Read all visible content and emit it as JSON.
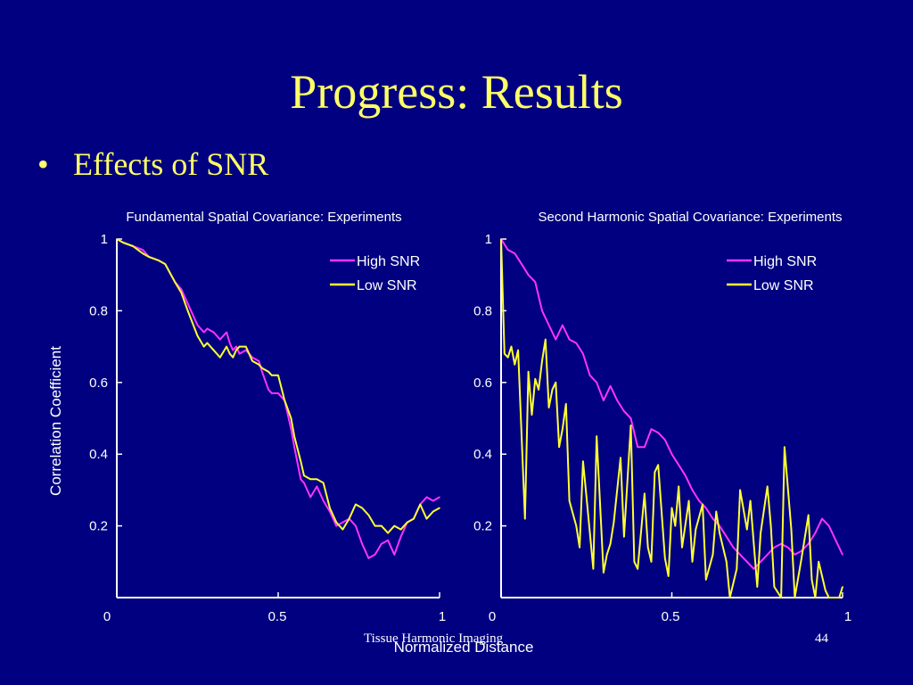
{
  "slide": {
    "title": "Progress: Results",
    "bullet": "Effects of SNR",
    "ylabel": "Correlation Coefficient",
    "xlabel": "Normalized Distance",
    "footer_left": "Tissue Harmonic Imaging",
    "footer_page": "44"
  },
  "colors": {
    "background": "#000080",
    "title": "#ffff66",
    "high_snr": "#ff33ff",
    "low_snr": "#ffff33",
    "axis": "#ffffff"
  },
  "chart_data": [
    {
      "type": "line",
      "title": "Fundamental Spatial Covariance: Experiments",
      "xlim": [
        0,
        1
      ],
      "ylim": [
        0,
        1
      ],
      "x_ticks": [
        "0",
        "0.5",
        "1"
      ],
      "y_ticks": [
        "1",
        "0.8",
        "0.6",
        "0.4",
        "0.2"
      ],
      "legend_position": "top-right",
      "series": [
        {
          "name": "High SNR",
          "color": "#ff33ff",
          "x": [
            0,
            0.02,
            0.05,
            0.08,
            0.1,
            0.13,
            0.15,
            0.18,
            0.2,
            0.22,
            0.25,
            0.27,
            0.28,
            0.3,
            0.32,
            0.34,
            0.35,
            0.36,
            0.37,
            0.38,
            0.4,
            0.42,
            0.44,
            0.45,
            0.47,
            0.48,
            0.5,
            0.52,
            0.54,
            0.55,
            0.57,
            0.58,
            0.6,
            0.62,
            0.64,
            0.66,
            0.68,
            0.7,
            0.72,
            0.74,
            0.76,
            0.78,
            0.8,
            0.82,
            0.84,
            0.86,
            0.88,
            0.9,
            0.92,
            0.94,
            0.96,
            0.98,
            1.0
          ],
          "y": [
            1.0,
            0.99,
            0.98,
            0.97,
            0.95,
            0.94,
            0.93,
            0.88,
            0.86,
            0.82,
            0.76,
            0.74,
            0.75,
            0.74,
            0.72,
            0.74,
            0.71,
            0.69,
            0.7,
            0.68,
            0.69,
            0.67,
            0.66,
            0.63,
            0.58,
            0.57,
            0.57,
            0.55,
            0.47,
            0.42,
            0.33,
            0.32,
            0.28,
            0.31,
            0.27,
            0.24,
            0.2,
            0.21,
            0.22,
            0.2,
            0.15,
            0.11,
            0.12,
            0.15,
            0.16,
            0.12,
            0.17,
            0.21,
            0.22,
            0.26,
            0.28,
            0.27,
            0.28
          ]
        },
        {
          "name": "Low SNR",
          "color": "#ffff33",
          "x": [
            0,
            0.02,
            0.05,
            0.08,
            0.1,
            0.13,
            0.15,
            0.18,
            0.2,
            0.22,
            0.25,
            0.27,
            0.28,
            0.3,
            0.32,
            0.34,
            0.35,
            0.36,
            0.37,
            0.38,
            0.4,
            0.42,
            0.44,
            0.45,
            0.47,
            0.48,
            0.5,
            0.52,
            0.54,
            0.55,
            0.57,
            0.58,
            0.6,
            0.62,
            0.64,
            0.66,
            0.68,
            0.7,
            0.72,
            0.74,
            0.76,
            0.78,
            0.8,
            0.82,
            0.84,
            0.86,
            0.88,
            0.9,
            0.92,
            0.94,
            0.96,
            0.98,
            1.0
          ],
          "y": [
            1.0,
            0.99,
            0.98,
            0.96,
            0.95,
            0.94,
            0.93,
            0.88,
            0.85,
            0.8,
            0.73,
            0.7,
            0.71,
            0.69,
            0.67,
            0.7,
            0.68,
            0.67,
            0.69,
            0.7,
            0.7,
            0.66,
            0.65,
            0.64,
            0.63,
            0.62,
            0.62,
            0.55,
            0.5,
            0.45,
            0.38,
            0.34,
            0.33,
            0.33,
            0.32,
            0.25,
            0.21,
            0.19,
            0.22,
            0.26,
            0.25,
            0.23,
            0.2,
            0.2,
            0.18,
            0.2,
            0.19,
            0.21,
            0.22,
            0.26,
            0.22,
            0.24,
            0.25
          ]
        }
      ]
    },
    {
      "type": "line",
      "title": "Second Harmonic Spatial Covariance: Experiments",
      "xlim": [
        0,
        1
      ],
      "ylim": [
        0,
        1
      ],
      "x_ticks": [
        "0",
        "0.5",
        "1"
      ],
      "y_ticks": [
        "1",
        "0.8",
        "0.6",
        "0.4",
        "0.2"
      ],
      "legend_position": "top-right",
      "series": [
        {
          "name": "High SNR",
          "color": "#ff33ff",
          "x": [
            0,
            0.02,
            0.04,
            0.06,
            0.08,
            0.1,
            0.12,
            0.14,
            0.16,
            0.18,
            0.2,
            0.22,
            0.24,
            0.26,
            0.28,
            0.3,
            0.32,
            0.34,
            0.36,
            0.38,
            0.4,
            0.42,
            0.44,
            0.46,
            0.48,
            0.5,
            0.52,
            0.54,
            0.56,
            0.58,
            0.6,
            0.62,
            0.64,
            0.66,
            0.68,
            0.7,
            0.72,
            0.74,
            0.76,
            0.78,
            0.8,
            0.82,
            0.84,
            0.86,
            0.88,
            0.9,
            0.92,
            0.94,
            0.96,
            0.98,
            1.0
          ],
          "y": [
            1.0,
            0.97,
            0.96,
            0.93,
            0.9,
            0.88,
            0.8,
            0.76,
            0.72,
            0.76,
            0.72,
            0.71,
            0.68,
            0.62,
            0.6,
            0.55,
            0.59,
            0.55,
            0.52,
            0.5,
            0.42,
            0.42,
            0.47,
            0.46,
            0.44,
            0.4,
            0.37,
            0.34,
            0.3,
            0.27,
            0.25,
            0.22,
            0.2,
            0.17,
            0.14,
            0.12,
            0.1,
            0.08,
            0.1,
            0.12,
            0.14,
            0.15,
            0.14,
            0.12,
            0.13,
            0.15,
            0.18,
            0.22,
            0.2,
            0.16,
            0.12
          ]
        },
        {
          "name": "Low SNR",
          "color": "#ffff33",
          "x": [
            0,
            0.01,
            0.02,
            0.03,
            0.04,
            0.05,
            0.07,
            0.08,
            0.09,
            0.1,
            0.11,
            0.12,
            0.13,
            0.14,
            0.15,
            0.16,
            0.17,
            0.18,
            0.19,
            0.2,
            0.22,
            0.23,
            0.24,
            0.25,
            0.27,
            0.28,
            0.3,
            0.31,
            0.32,
            0.33,
            0.35,
            0.36,
            0.38,
            0.39,
            0.4,
            0.42,
            0.43,
            0.44,
            0.45,
            0.46,
            0.48,
            0.49,
            0.5,
            0.51,
            0.52,
            0.53,
            0.55,
            0.56,
            0.57,
            0.59,
            0.6,
            0.62,
            0.63,
            0.64,
            0.66,
            0.67,
            0.69,
            0.7,
            0.72,
            0.73,
            0.75,
            0.76,
            0.78,
            0.79,
            0.8,
            0.82,
            0.83,
            0.85,
            0.86,
            0.88,
            0.9,
            0.91,
            0.92,
            0.93,
            0.95,
            0.96,
            0.97,
            0.98,
            0.99,
            1.0
          ],
          "y": [
            1.0,
            0.68,
            0.67,
            0.7,
            0.65,
            0.69,
            0.22,
            0.63,
            0.51,
            0.61,
            0.58,
            0.66,
            0.72,
            0.53,
            0.58,
            0.6,
            0.42,
            0.47,
            0.54,
            0.27,
            0.2,
            0.14,
            0.38,
            0.28,
            0.08,
            0.45,
            0.07,
            0.12,
            0.15,
            0.21,
            0.39,
            0.17,
            0.48,
            0.1,
            0.08,
            0.29,
            0.14,
            0.1,
            0.35,
            0.37,
            0.11,
            0.06,
            0.25,
            0.2,
            0.31,
            0.14,
            0.27,
            0.1,
            0.19,
            0.26,
            0.05,
            0.12,
            0.24,
            0.18,
            0.1,
            0.0,
            0.08,
            0.3,
            0.19,
            0.27,
            0.03,
            0.18,
            0.31,
            0.2,
            0.03,
            0.0,
            0.42,
            0.19,
            0.0,
            0.11,
            0.23,
            0.05,
            0.0,
            0.1,
            0.02,
            0.0,
            0.0,
            0.0,
            0.0,
            0.03
          ]
        }
      ]
    }
  ]
}
